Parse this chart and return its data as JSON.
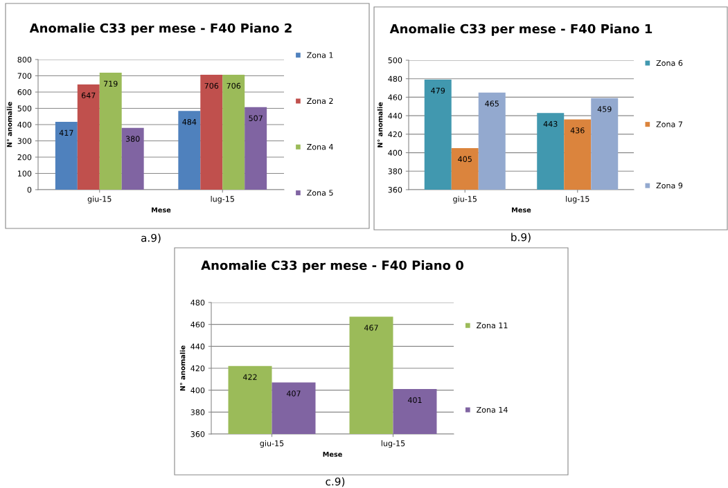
{
  "chart_data": [
    {
      "type": "bar",
      "title": "Anomalie C33 per mese - F40 Piano 2",
      "xlabel": "Mese",
      "ylabel": "N° anomalie",
      "categories": [
        "giu-15",
        "lug-15"
      ],
      "series": [
        {
          "name": "Zona 1",
          "color": "#4f81bd",
          "values": [
            417,
            484
          ]
        },
        {
          "name": "Zona 2",
          "color": "#c0504d",
          "values": [
            647,
            706
          ]
        },
        {
          "name": "Zona 4",
          "color": "#9bbb59",
          "values": [
            719,
            706
          ]
        },
        {
          "name": "Zona 5",
          "color": "#8064a2",
          "values": [
            380,
            507
          ]
        }
      ],
      "ylim": [
        0,
        800
      ],
      "yticks": [
        0,
        100,
        200,
        300,
        400,
        500,
        600,
        700,
        800
      ],
      "grid": "y",
      "legend": "right",
      "data_labels": true,
      "annotations": [
        "a.9)"
      ]
    },
    {
      "type": "bar",
      "title": "Anomalie C33 per mese - F40 Piano 1",
      "xlabel": "Mese",
      "ylabel": "N° anomalie",
      "categories": [
        "giu-15",
        "lug-15"
      ],
      "series": [
        {
          "name": "Zona 6",
          "color": "#4198af",
          "values": [
            479,
            443
          ]
        },
        {
          "name": "Zona 7",
          "color": "#db843d",
          "values": [
            405,
            436
          ]
        },
        {
          "name": "Zona 9",
          "color": "#93a9cf",
          "values": [
            465,
            459
          ]
        }
      ],
      "ylim": [
        360,
        500
      ],
      "yticks": [
        360,
        380,
        400,
        420,
        440,
        460,
        480,
        500
      ],
      "grid": "y",
      "legend": "right",
      "data_labels": true,
      "annotations": [
        "b.9)"
      ]
    },
    {
      "type": "bar",
      "title": "Anomalie C33 per mese - F40 Piano 0",
      "xlabel": "Mese",
      "ylabel": "N° anomalie",
      "categories": [
        "giu-15",
        "lug-15"
      ],
      "series": [
        {
          "name": "Zona 11",
          "color": "#9bbb59",
          "values": [
            422,
            467
          ]
        },
        {
          "name": "Zona 14",
          "color": "#8064a2",
          "values": [
            407,
            401
          ]
        }
      ],
      "ylim": [
        360,
        480
      ],
      "yticks": [
        360,
        380,
        400,
        420,
        440,
        460,
        480
      ],
      "grid": "y",
      "legend": "right",
      "data_labels": true,
      "annotations": [
        "c.9)"
      ]
    }
  ]
}
